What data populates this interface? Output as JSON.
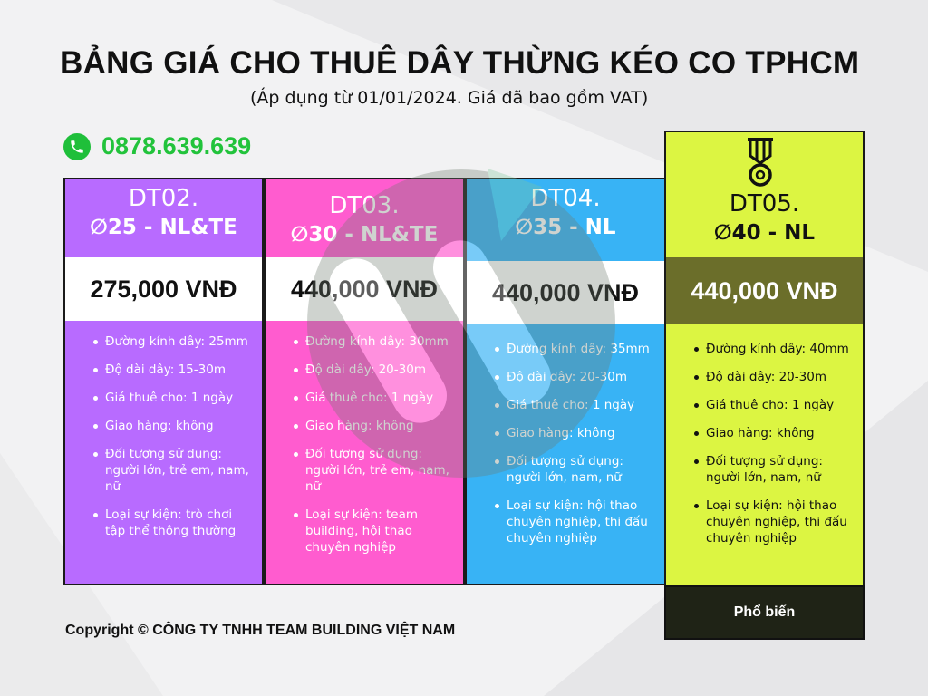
{
  "header": {
    "title": "BẢNG GIÁ CHO THUÊ DÂY THỪNG KÉO CO TPHCM",
    "subtitle": "(Áp dụng từ 01/01/2024. Giá đã bao gồm VAT)"
  },
  "contact": {
    "phone": "0878.639.639",
    "icon": "phone-icon"
  },
  "cards": [
    {
      "code": "DT02.",
      "diameter": "∅25 - NL&TE",
      "price": "275,000 VNĐ",
      "features": [
        "Đường kính dây: 25mm",
        "Độ dài dây: 15-30m",
        "Giá thuê cho: 1 ngày",
        "Giao hàng: không",
        "Đối tượng sử dụng: người lớn, trẻ em, nam, nữ",
        "Loại sự kiện: trò chơi tập thể thông thường"
      ]
    },
    {
      "code": "DT03.",
      "diameter": "∅30 - NL&TE",
      "price": "440,000 VNĐ",
      "features": [
        "Đường kính dây: 30mm",
        "Độ dài dây: 20-30m",
        "Giá thuê cho: 1 ngày",
        "Giao hàng: không",
        "Đối tượng sử dụng: người lớn, trẻ em, nam, nữ",
        "Loại sự kiện: team building, hội thao chuyên nghiệp"
      ]
    },
    {
      "code": "DT04.",
      "diameter": "∅35 - NL",
      "price": "440,000 VNĐ",
      "features": [
        "Đường kính dây: 35mm",
        "Độ dài dây: 20-30m",
        "Giá thuê cho: 1 ngày",
        "Giao hàng: không",
        "Đối tượng sử dụng: người lớn, nam, nữ",
        "Loại sự kiện: hội thao chuyên nghiệp, thi đấu chuyên nghiệp"
      ]
    },
    {
      "code": "DT05.",
      "diameter": "∅40 - NL",
      "price": "440,000 VNĐ",
      "features": [
        "Đường kính dây: 40mm",
        "Độ dài dây: 20-30m",
        "Giá thuê cho: 1 ngày",
        "Giao hàng: không",
        "Đối tượng sử dụng: người lớn, nam, nữ",
        "Loại sự kiện: hội thao chuyên nghiệp, thi đấu chuyên nghiệp"
      ],
      "badge": "Phổ biến",
      "icon": "medal-icon"
    }
  ],
  "colors": {
    "card1": "#b86bff",
    "card2": "#ff5ccf",
    "card3": "#38b3f5",
    "card4": "#dcf542",
    "phone": "#22c33b"
  },
  "footer": {
    "copyright": "Copyright © CÔNG TY TNHH TEAM BUILDING VIỆT NAM"
  }
}
